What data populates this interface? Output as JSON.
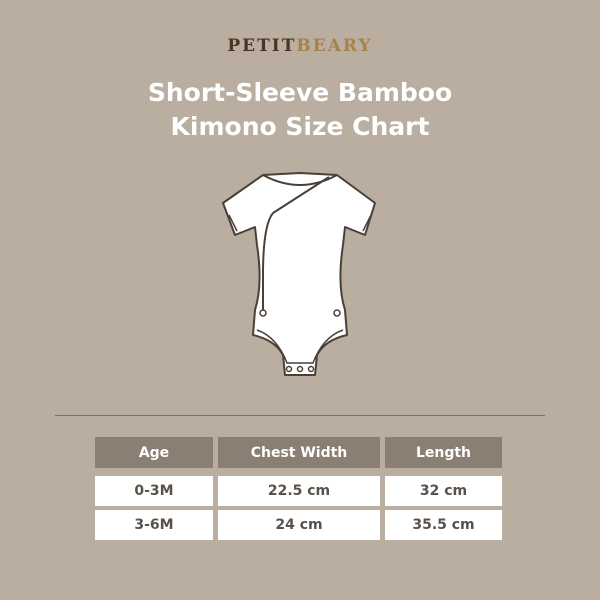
{
  "brand": {
    "part1": "PETIT",
    "part2": "BEARY",
    "colors": {
      "part1": "#4a3424",
      "part2": "#a8804f"
    }
  },
  "title": {
    "line1": "Short-Sleeve Bamboo",
    "line2": "Kimono Size Chart"
  },
  "illustration": "short-sleeve-kimono-bodysuit-icon",
  "table": {
    "headers": [
      "Age",
      "Chest Width",
      "Length"
    ],
    "rows": [
      [
        "0-3M",
        "22.5 cm",
        "32 cm"
      ],
      [
        "3-6M",
        "24 cm",
        "35.5 cm"
      ]
    ]
  },
  "colors": {
    "background": "#b9ae9f",
    "header": "#8a7f72"
  }
}
